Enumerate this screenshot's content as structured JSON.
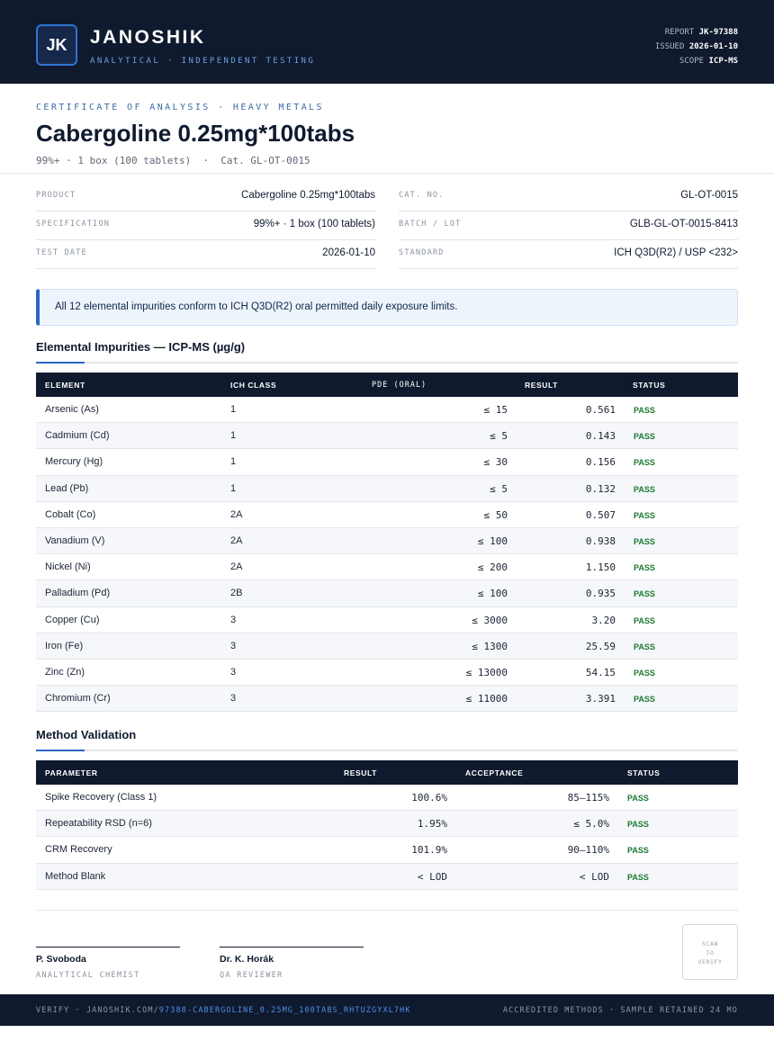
{
  "header": {
    "logo_initials": "JK",
    "brand": "JANOSHIK",
    "tagline": "ANALYTICAL · INDEPENDENT TESTING",
    "report_label": "REPORT",
    "report_value": "JK-97388",
    "issued_label": "ISSUED",
    "issued_value": "2026-01-10",
    "scope_label": "SCOPE",
    "scope_value": "ICP-MS"
  },
  "certificate": {
    "kicker": "CERTIFICATE OF ANALYSIS · HEAVY METALS",
    "title": "Cabergoline 0.25mg*100tabs",
    "subtitle": "99%+ · 1 box (100 tablets)  ·  Cat. GL-OT-0015"
  },
  "info": {
    "product_label": "PRODUCT",
    "product_value": "Cabergoline 0.25mg*100tabs",
    "spec_label": "SPECIFICATION",
    "spec_value": "99%+ · 1 box (100 tablets)",
    "date_label": "TEST DATE",
    "date_value": "2026-01-10",
    "cat_label": "CAT. NO.",
    "cat_value": "GL-OT-0015",
    "batch_label": "BATCH / LOT",
    "batch_value": "GLB-GL-OT-0015-8413",
    "standard_label": "STANDARD",
    "standard_value": "ICH Q3D(R2) / USP <232>"
  },
  "notice": "All 12 elemental impurities conform to ICH Q3D(R2) oral permitted daily exposure limits.",
  "impurities": {
    "title": "Elemental Impurities — ICP-MS (µg/g)",
    "headers": [
      "ELEMENT",
      "ICH CLASS",
      "PDE (ORAL)",
      "RESULT",
      "STATUS"
    ],
    "rows": [
      {
        "element": "Arsenic (As)",
        "cls": "1",
        "pde": "≤ 15",
        "result": "0.561",
        "status": "PASS"
      },
      {
        "element": "Cadmium (Cd)",
        "cls": "1",
        "pde": "≤ 5",
        "result": "0.143",
        "status": "PASS"
      },
      {
        "element": "Mercury (Hg)",
        "cls": "1",
        "pde": "≤ 30",
        "result": "0.156",
        "status": "PASS"
      },
      {
        "element": "Lead (Pb)",
        "cls": "1",
        "pde": "≤ 5",
        "result": "0.132",
        "status": "PASS"
      },
      {
        "element": "Cobalt (Co)",
        "cls": "2A",
        "pde": "≤ 50",
        "result": "0.507",
        "status": "PASS"
      },
      {
        "element": "Vanadium (V)",
        "cls": "2A",
        "pde": "≤ 100",
        "result": "0.938",
        "status": "PASS"
      },
      {
        "element": "Nickel (Ni)",
        "cls": "2A",
        "pde": "≤ 200",
        "result": "1.150",
        "status": "PASS"
      },
      {
        "element": "Palladium (Pd)",
        "cls": "2B",
        "pde": "≤ 100",
        "result": "0.935",
        "status": "PASS"
      },
      {
        "element": "Copper (Cu)",
        "cls": "3",
        "pde": "≤ 3000",
        "result": "3.20",
        "status": "PASS"
      },
      {
        "element": "Iron (Fe)",
        "cls": "3",
        "pde": "≤ 1300",
        "result": "25.59",
        "status": "PASS"
      },
      {
        "element": "Zinc (Zn)",
        "cls": "3",
        "pde": "≤ 13000",
        "result": "54.15",
        "status": "PASS"
      },
      {
        "element": "Chromium (Cr)",
        "cls": "3",
        "pde": "≤ 11000",
        "result": "3.391",
        "status": "PASS"
      }
    ]
  },
  "validation": {
    "title": "Method Validation",
    "headers": [
      "PARAMETER",
      "RESULT",
      "ACCEPTANCE",
      "STATUS"
    ],
    "rows": [
      {
        "param": "Spike Recovery (Class 1)",
        "result": "100.6%",
        "acceptance": "85–115%",
        "status": "PASS"
      },
      {
        "param": "Repeatability RSD (n=6)",
        "result": "1.95%",
        "acceptance": "≤ 5.0%",
        "status": "PASS"
      },
      {
        "param": "CRM Recovery",
        "result": "101.9%",
        "acceptance": "90–110%",
        "status": "PASS"
      },
      {
        "param": "Method Blank",
        "result": "< LOD",
        "acceptance": "< LOD",
        "status": "PASS"
      }
    ]
  },
  "signatures": [
    {
      "name": "P. Svoboda",
      "role": "ANALYTICAL CHEMIST"
    },
    {
      "name": "Dr. K. Horák",
      "role": "QA REVIEWER"
    }
  ],
  "scan": [
    "SCAN",
    "TO",
    "VERIFY"
  ],
  "footer": {
    "verify_prefix": "VERIFY · JANOSHIK.COM/",
    "verify_link": "97388-CABERGOLINE_0.25MG_100TABS_RHTUZGYXL7HK",
    "right": "ACCREDITED METHODS · SAMPLE RETAINED 24 MO"
  },
  "colors": {
    "navy": "#0f1a2e",
    "accent": "#2a66c4",
    "pass": "#1c7a32"
  }
}
